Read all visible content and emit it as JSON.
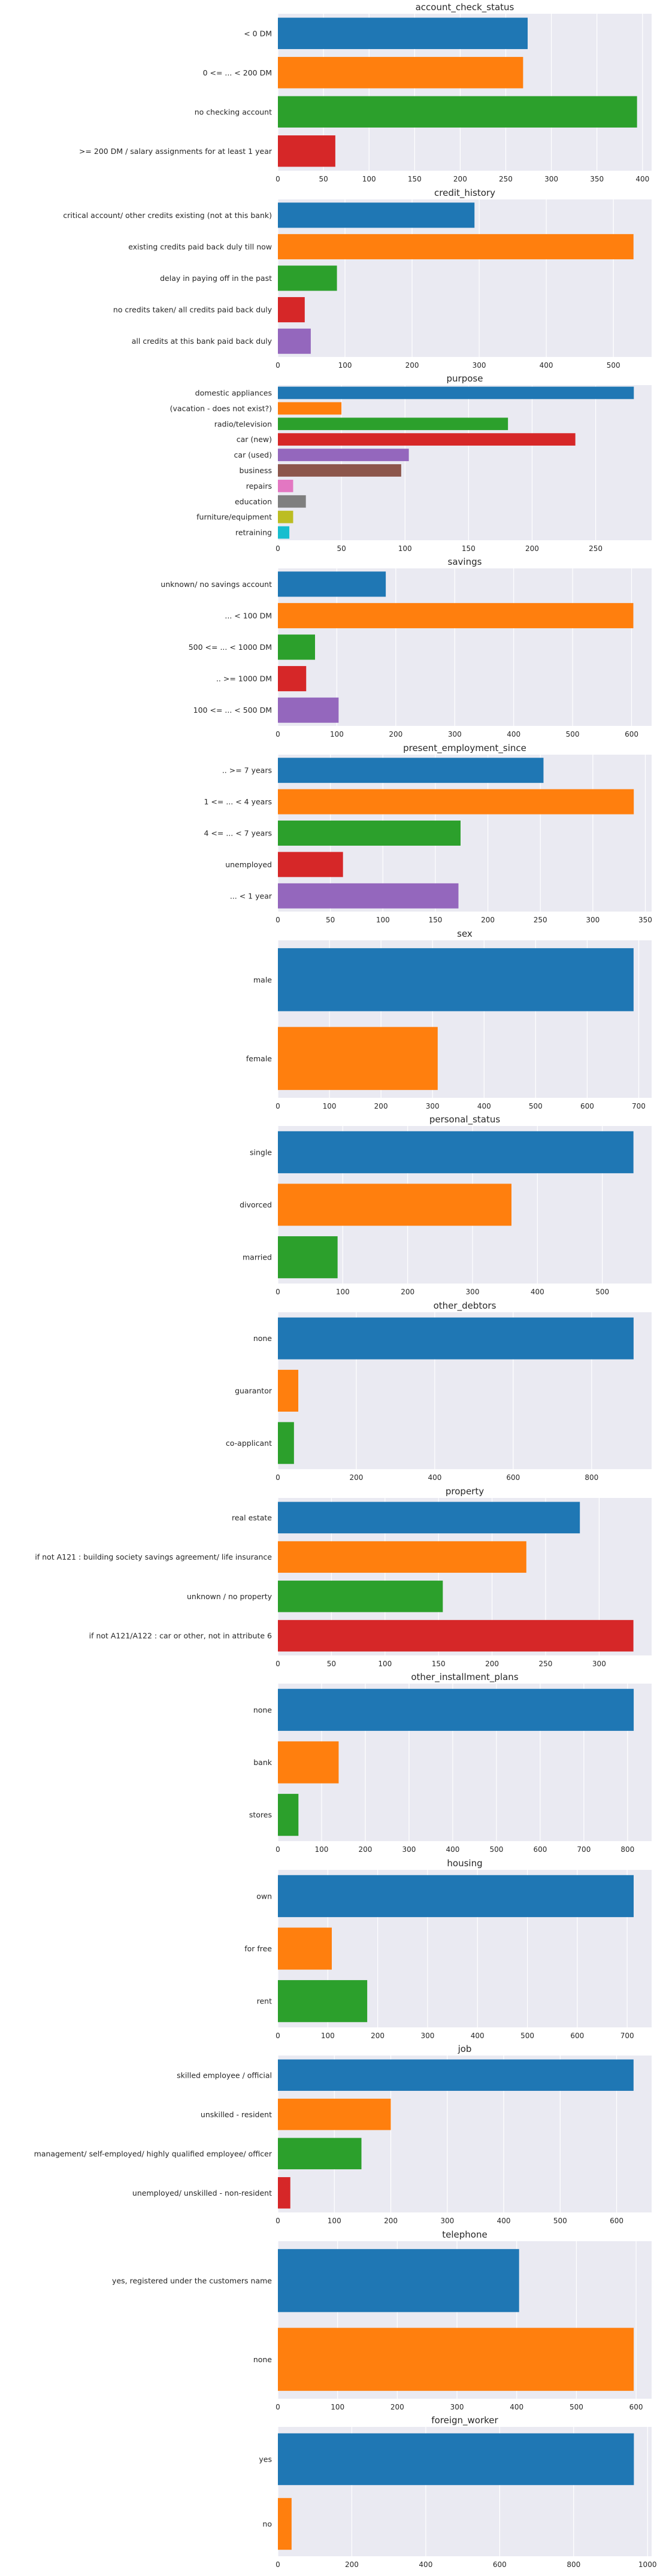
{
  "palette": [
    "#1f77b4",
    "#ff7f0e",
    "#2ca02c",
    "#d62728",
    "#9467bd",
    "#8c564b",
    "#e377c2",
    "#7f7f7f",
    "#bcbd22",
    "#17becf"
  ],
  "style": {
    "background": "#eaeaf2",
    "grid": "#ffffff"
  },
  "chart_data": [
    {
      "type": "bar",
      "orientation": "horizontal",
      "title": "account_check_status",
      "categories": [
        "< 0 DM",
        "0 <= ... < 200 DM",
        "no checking account",
        ">= 200 DM / salary assignments for at least 1 year"
      ],
      "values": [
        274,
        269,
        394,
        63
      ],
      "xlim": [
        0,
        410
      ],
      "xticks": [
        0,
        50,
        100,
        150,
        200,
        250,
        300,
        350,
        400
      ],
      "grid": true
    },
    {
      "type": "bar",
      "orientation": "horizontal",
      "title": "credit_history",
      "categories": [
        "critical account/ other credits existing (not at this bank)",
        "existing credits paid back duly till now",
        "delay in paying off in the past",
        "no credits taken/ all credits paid back duly",
        "all credits at this bank paid back duly"
      ],
      "values": [
        293,
        530,
        88,
        40,
        49
      ],
      "xlim": [
        0,
        557
      ],
      "xticks": [
        0,
        100,
        200,
        300,
        400,
        500
      ],
      "grid": true
    },
    {
      "type": "bar",
      "orientation": "horizontal",
      "title": "purpose",
      "categories": [
        "domestic appliances",
        "(vacation - does not exist?)",
        "radio/television",
        "car (new)",
        "car (used)",
        "business",
        "repairs",
        "education",
        "furniture/equipment",
        "retraining"
      ],
      "values": [
        280,
        50,
        181,
        234,
        103,
        97,
        12,
        22,
        12,
        9
      ],
      "xlim": [
        0,
        294
      ],
      "xticks": [
        0,
        50,
        100,
        150,
        200,
        250
      ],
      "grid": true
    },
    {
      "type": "bar",
      "orientation": "horizontal",
      "title": "savings",
      "categories": [
        "unknown/ no savings account",
        "... < 100 DM",
        "500 <= ... < 1000 DM",
        ".. >= 1000 DM",
        "100 <= ... < 500 DM"
      ],
      "values": [
        183,
        603,
        63,
        48,
        103
      ],
      "xlim": [
        0,
        634
      ],
      "xticks": [
        0,
        100,
        200,
        300,
        400,
        500,
        600
      ],
      "grid": true
    },
    {
      "type": "bar",
      "orientation": "horizontal",
      "title": "present_employment_since",
      "categories": [
        ".. >= 7 years",
        "1 <= ... < 4 years",
        "4 <= ... < 7 years",
        "unemployed",
        "... < 1 year"
      ],
      "values": [
        253,
        339,
        174,
        62,
        172
      ],
      "xlim": [
        0,
        356
      ],
      "xticks": [
        0,
        50,
        100,
        150,
        200,
        250,
        300,
        350
      ],
      "grid": true
    },
    {
      "type": "bar",
      "orientation": "horizontal",
      "title": "sex",
      "categories": [
        "male",
        "female"
      ],
      "values": [
        690,
        310
      ],
      "xlim": [
        0,
        725
      ],
      "xticks": [
        0,
        100,
        200,
        300,
        400,
        500,
        600,
        700
      ],
      "grid": true
    },
    {
      "type": "bar",
      "orientation": "horizontal",
      "title": "personal_status",
      "categories": [
        "single",
        "divorced",
        "married"
      ],
      "values": [
        548,
        360,
        92
      ],
      "xlim": [
        0,
        576
      ],
      "xticks": [
        0,
        100,
        200,
        300,
        400,
        500
      ],
      "grid": true
    },
    {
      "type": "bar",
      "orientation": "horizontal",
      "title": "other_debtors",
      "categories": [
        "none",
        "guarantor",
        "co-applicant"
      ],
      "values": [
        907,
        52,
        41
      ],
      "xlim": [
        0,
        953
      ],
      "xticks": [
        0,
        200,
        400,
        600,
        800
      ],
      "grid": true
    },
    {
      "type": "bar",
      "orientation": "horizontal",
      "title": "property",
      "categories": [
        "real estate",
        "if not A121 : building society savings agreement/ life insurance",
        "unknown / no property",
        "if not A121/A122 : car or other, not in attribute 6"
      ],
      "values": [
        282,
        232,
        154,
        332
      ],
      "xlim": [
        0,
        349
      ],
      "xticks": [
        0,
        50,
        100,
        150,
        200,
        250,
        300
      ],
      "grid": true
    },
    {
      "type": "bar",
      "orientation": "horizontal",
      "title": "other_installment_plans",
      "categories": [
        "none",
        "bank",
        "stores"
      ],
      "values": [
        814,
        139,
        47
      ],
      "xlim": [
        0,
        855
      ],
      "xticks": [
        0,
        100,
        200,
        300,
        400,
        500,
        600,
        700,
        800
      ],
      "grid": true
    },
    {
      "type": "bar",
      "orientation": "horizontal",
      "title": "housing",
      "categories": [
        "own",
        "for free",
        "rent"
      ],
      "values": [
        713,
        108,
        179
      ],
      "xlim": [
        0,
        749
      ],
      "xticks": [
        0,
        100,
        200,
        300,
        400,
        500,
        600,
        700
      ],
      "grid": true
    },
    {
      "type": "bar",
      "orientation": "horizontal",
      "title": "job",
      "categories": [
        "skilled employee / official",
        "unskilled - resident",
        "management/ self-employed/ highly qualified employee/ officer",
        "unemployed/ unskilled - non-resident"
      ],
      "values": [
        630,
        200,
        148,
        22
      ],
      "xlim": [
        0,
        662
      ],
      "xticks": [
        0,
        100,
        200,
        300,
        400,
        500,
        600
      ],
      "grid": true
    },
    {
      "type": "bar",
      "orientation": "horizontal",
      "title": "telephone",
      "categories": [
        "yes, registered under the customers name",
        "none"
      ],
      "values": [
        404,
        596
      ],
      "xlim": [
        0,
        626
      ],
      "xticks": [
        0,
        100,
        200,
        300,
        400,
        500,
        600
      ],
      "grid": true
    },
    {
      "type": "bar",
      "orientation": "horizontal",
      "title": "foreign_worker",
      "categories": [
        "yes",
        "no"
      ],
      "values": [
        963,
        37
      ],
      "xlim": [
        0,
        1011
      ],
      "xticks": [
        0,
        200,
        400,
        600,
        800,
        1000
      ],
      "grid": true
    }
  ]
}
